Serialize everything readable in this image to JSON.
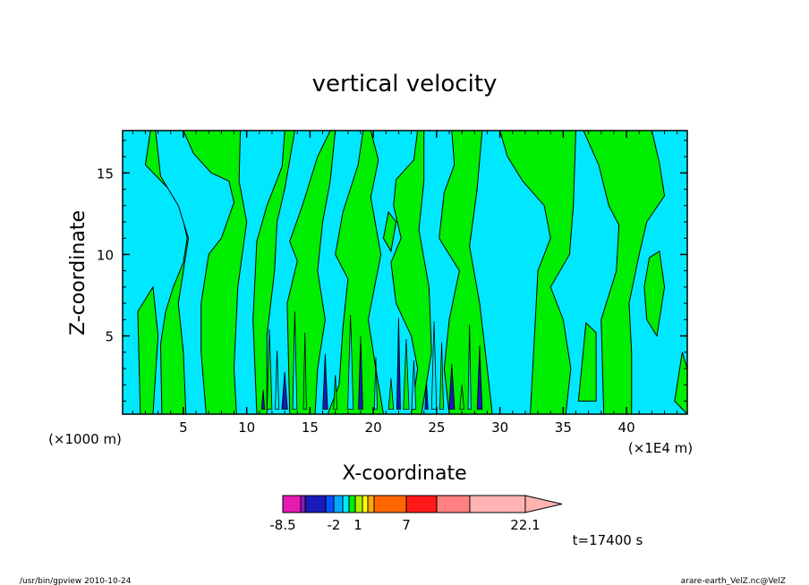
{
  "chart_data": {
    "type": "heatmap",
    "title": "vertical velocity",
    "xlabel": "X-coordinate",
    "ylabel": "Z-coordinate",
    "x_unit_left": "(×1000 m)",
    "x_unit_right": "(×1E4 m)",
    "xlim": [
      0.2,
      44.8
    ],
    "ylim": [
      0.2,
      17.6
    ],
    "x_ticks": [
      5,
      10,
      15,
      20,
      25,
      30,
      35,
      40
    ],
    "y_ticks": [
      5,
      10,
      15
    ],
    "grid": false,
    "colors": {
      "negative_small": "#00e8ff",
      "positive_small": "#00ee00",
      "contour": "#000000"
    },
    "colorbar": {
      "colors": [
        "#e619b3",
        "#8a1ab8",
        "#1a1ab8",
        "#0055ff",
        "#00aaff",
        "#00e8ff",
        "#00ee00",
        "#b0ee00",
        "#ffff00",
        "#ffaa00",
        "#ff6600",
        "#ff1a1a",
        "#ff8080",
        "#ffb3b3"
      ],
      "tick_labels": [
        "-8.5",
        "-2",
        "1",
        "7",
        "22.1"
      ]
    },
    "time_label": "t=17400 s"
  },
  "footer": {
    "left": "/usr/bin/gpview   2010-10-24",
    "right": "arare-earth_VelZ.nc@VelZ"
  }
}
